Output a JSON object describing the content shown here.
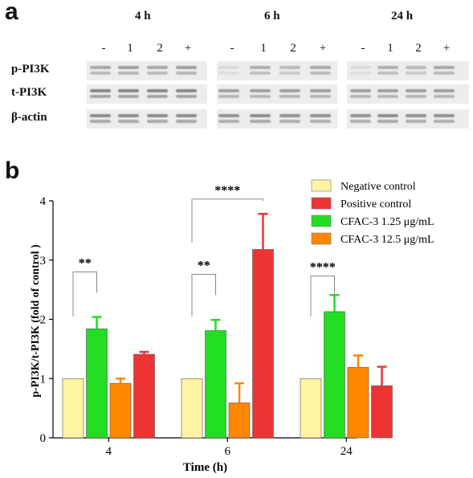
{
  "panel_a": {
    "letter": "a",
    "timepoints": [
      "4 h",
      "6 h",
      "24 h"
    ],
    "lanes": [
      "-",
      "1",
      "2",
      "+"
    ],
    "rows": [
      "p-PI3K",
      "t-PI3K",
      "β-actin"
    ]
  },
  "panel_b": {
    "letter": "b"
  },
  "chart_data": {
    "type": "bar",
    "categories": [
      "4",
      "6",
      "24"
    ],
    "xlabel": "Time (h)",
    "ylabel": "p-PI3K/t-PI3K (fold of control )",
    "ylim": [
      0,
      4
    ],
    "yticks": [
      "0",
      "1",
      "2",
      "3",
      "4"
    ],
    "legend_position": "top-right",
    "series": [
      {
        "name": "Negative control",
        "color": "#fff4a3",
        "values": [
          1.0,
          1.0,
          1.0
        ],
        "errors": [
          0,
          0,
          0
        ]
      },
      {
        "name": "CFAC-3 1.25 μg/mL",
        "color": "#22dd22",
        "values": [
          1.84,
          1.81,
          2.13
        ],
        "errors": [
          0.2,
          0.18,
          0.28
        ]
      },
      {
        "name": "CFAC-3 12.5 μg/mL",
        "color": "#ff8800",
        "values": [
          0.92,
          0.59,
          1.19
        ],
        "errors": [
          0.08,
          0.33,
          0.2
        ]
      },
      {
        "name": "Positive control",
        "color": "#ee3333",
        "values": [
          1.41,
          3.18,
          0.88
        ],
        "errors": [
          0.04,
          0.6,
          0.32
        ]
      }
    ],
    "legend_order": [
      "Negative control",
      "Positive control",
      "CFAC-3 1.25 μg/mL",
      "CFAC-3 12.5 μg/mL"
    ],
    "significance": [
      {
        "group": "4",
        "from_series": 0,
        "to_series": 1,
        "label": "**"
      },
      {
        "group": "6",
        "from_series": 0,
        "to_series": 1,
        "label": "**"
      },
      {
        "group": "6",
        "from_series": 0,
        "to_series": 3,
        "label": "****"
      },
      {
        "group": "24",
        "from_series": 0,
        "to_series": 1,
        "label": "****"
      }
    ]
  }
}
